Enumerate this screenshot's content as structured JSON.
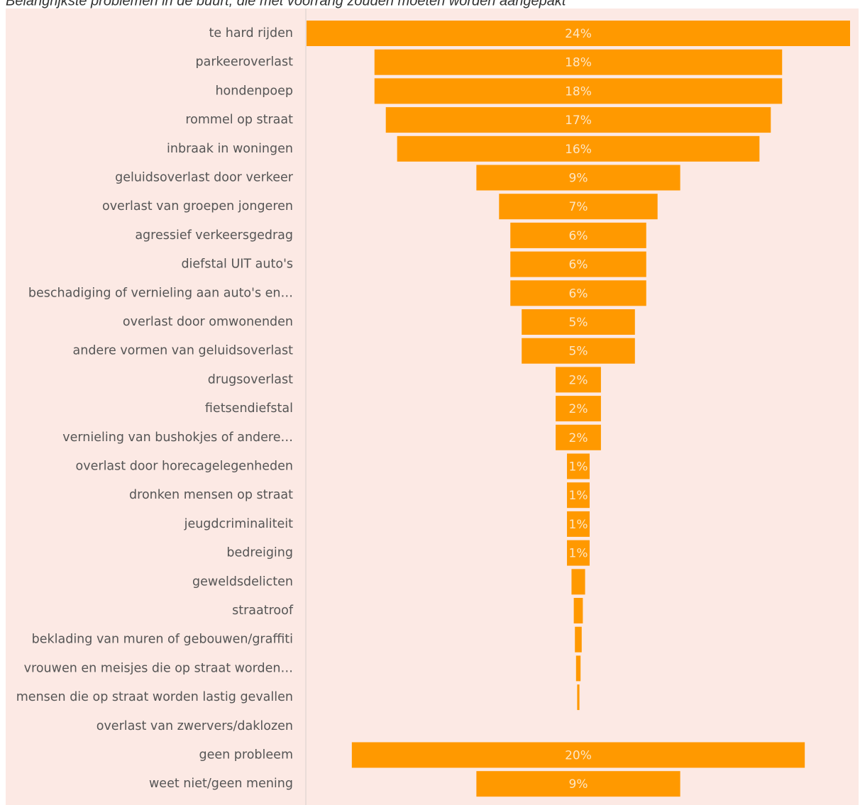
{
  "chart_data": {
    "type": "funnel",
    "title": "Belangrijkste problemen in de buurt, die met voorrang zouden moeten worden aangepakt",
    "categories": [
      "te hard rijden",
      "parkeeroverlast",
      "hondenpoep",
      "rommel op straat",
      "inbraak in woningen",
      "geluidsoverlast door verkeer",
      "overlast van groepen jongeren",
      "agressief verkeersgedrag",
      "diefstal UIT auto's",
      "beschadiging of vernieling aan auto's en…",
      "overlast door omwonenden",
      "andere vormen van geluidsoverlast",
      "drugsoverlast",
      "fietsendiefstal",
      "vernieling van bushokjes of andere…",
      "overlast door horecagelegenheden",
      "dronken mensen op straat",
      "jeugdcriminaliteit",
      "bedreiging",
      "geweldsdelicten",
      "straatroof",
      "beklading van muren of gebouwen/graffiti",
      "vrouwen en meisjes die op straat worden…",
      "mensen die op straat worden lastig gevallen",
      "overlast van zwervers/daklozen",
      "geen probleem",
      "weet niet/geen mening"
    ],
    "values": [
      24,
      18,
      18,
      17,
      16,
      9,
      7,
      6,
      6,
      6,
      5,
      5,
      2,
      2,
      2,
      1,
      1,
      1,
      1,
      0.6,
      0.4,
      0.3,
      0.2,
      0.1,
      0,
      20,
      9
    ],
    "value_labels": [
      "24%",
      "18%",
      "18%",
      "17%",
      "16%",
      "9%",
      "7%",
      "6%",
      "6%",
      "6%",
      "5%",
      "5%",
      "2%",
      "2%",
      "2%",
      "1%",
      "1%",
      "1%",
      "1%",
      null,
      null,
      null,
      null,
      null,
      null,
      "20%",
      "9%"
    ],
    "color": "#ff9900",
    "xlim": [
      0,
      24
    ]
  }
}
